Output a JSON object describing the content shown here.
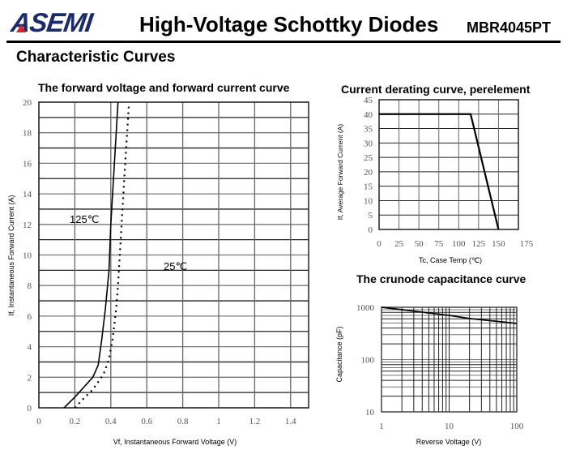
{
  "header": {
    "logo": "ASEMI",
    "title": "High-Voltage Schottky Diodes",
    "part_number": "MBR4045PT"
  },
  "section_title": "Characteristic Curves",
  "colors": {
    "logo": "#1b2a6b",
    "logo_accent": "#d9232a"
  },
  "chart_data": [
    {
      "type": "line",
      "title": "The forward voltage and forward current curve",
      "xlabel": "Vf, Instantaneous Forward Voltage (V)",
      "ylabel": "If, Instantaneous Forward Current (A)",
      "xlim": [
        0,
        1.5
      ],
      "ylim": [
        0,
        20
      ],
      "xticks": [
        "0",
        "0.2",
        "0.4",
        "0.6",
        "0.8",
        "1",
        "1.2",
        "1.4"
      ],
      "yticks": [
        "0",
        "2",
        "4",
        "6",
        "8",
        "10",
        "12",
        "14",
        "16",
        "18",
        "20"
      ],
      "grid": true,
      "series": [
        {
          "name": "125℃",
          "style": "solid",
          "x": [
            0.14,
            0.2,
            0.3,
            0.33,
            0.35,
            0.37,
            0.39,
            0.4,
            0.42,
            0.44
          ],
          "y": [
            0,
            0.7,
            2.0,
            2.8,
            4.5,
            6.5,
            9,
            12,
            16,
            20
          ]
        },
        {
          "name": "25℃",
          "style": "dotted",
          "x": [
            0.2,
            0.24,
            0.3,
            0.36,
            0.39,
            0.41,
            0.43,
            0.44,
            0.45,
            0.46,
            0.48,
            0.5
          ],
          "y": [
            0,
            0.5,
            1.2,
            2.2,
            3.2,
            4.5,
            6.5,
            8,
            10,
            12,
            16,
            19.7
          ]
        }
      ],
      "annotations": [
        "125℃",
        "25℃"
      ]
    },
    {
      "type": "line",
      "title": "Current derating curve, perelement",
      "xlabel": "Tc, Case Temp (℃)",
      "ylabel": "If, Average Forward Current (A)",
      "xlim": [
        0,
        175
      ],
      "ylim": [
        0,
        45
      ],
      "xticks": [
        "0",
        "25",
        "50",
        "75",
        "100",
        "125",
        "150",
        "175"
      ],
      "yticks": [
        "0",
        "5",
        "10",
        "15",
        "20",
        "25",
        "30",
        "35",
        "40",
        "45"
      ],
      "grid": true,
      "series": [
        {
          "name": "derating",
          "x": [
            0,
            115,
            150
          ],
          "y": [
            40,
            40,
            0
          ]
        }
      ]
    },
    {
      "type": "line",
      "title": "The crunode capacitance curve",
      "xlabel": "Reverse Voltage (V)",
      "ylabel": "Capacitance (pF)",
      "xscale": "log",
      "yscale": "log",
      "xlim": [
        1,
        100
      ],
      "ylim": [
        10,
        1000
      ],
      "xticks": [
        "1",
        "10",
        "100"
      ],
      "yticks": [
        "10",
        "100",
        "1000"
      ],
      "grid": true,
      "series": [
        {
          "name": "capacitance",
          "x": [
            1,
            2,
            5,
            10,
            20,
            50,
            100
          ],
          "y": [
            1000,
            900,
            780,
            700,
            610,
            540,
            490
          ]
        }
      ]
    }
  ]
}
